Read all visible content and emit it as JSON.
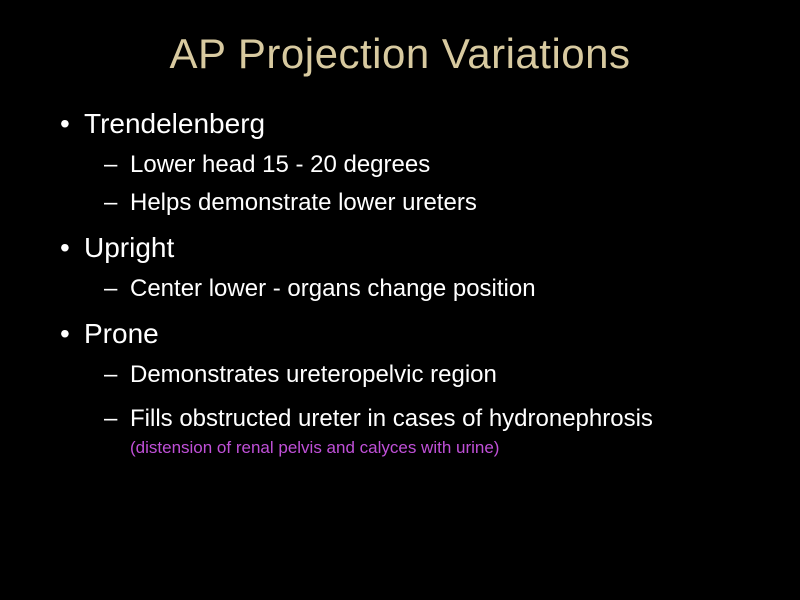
{
  "colors": {
    "background": "#000000",
    "title": "#d8caa0",
    "body_text": "#ffffff",
    "note_text": "#c050d8"
  },
  "typography": {
    "title_fontsize_pt": 42,
    "level1_fontsize_pt": 28,
    "level2_fontsize_pt": 24,
    "note_fontsize_pt": 17,
    "font_family": "Arial"
  },
  "slide": {
    "title": "AP Projection Variations",
    "bullets": [
      {
        "text": "Trendelenberg",
        "sub": [
          {
            "text": "Lower head 15 - 20 degrees"
          },
          {
            "text": "Helps demonstrate lower ureters"
          }
        ]
      },
      {
        "text": "Upright",
        "sub": [
          {
            "text": "Center lower - organs change position"
          }
        ]
      },
      {
        "text": "Prone",
        "sub": [
          {
            "text": "Demonstrates ureteropelvic region"
          },
          {
            "text": "Fills obstructed ureter in cases of hydronephrosis",
            "note": "(distension of renal pelvis and calyces with urine)"
          }
        ]
      }
    ]
  }
}
